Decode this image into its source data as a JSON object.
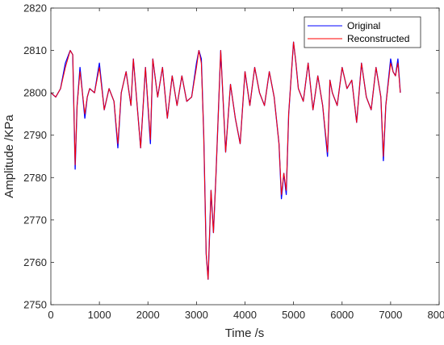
{
  "chart_data": {
    "type": "line",
    "xlabel": "Time /s",
    "ylabel": "Amplitude /KPa",
    "xlim": [
      0,
      8000
    ],
    "ylim": [
      2750,
      2820
    ],
    "xticks": [
      "0",
      "1000",
      "2000",
      "3000",
      "4000",
      "5000",
      "6000",
      "7000",
      "8000"
    ],
    "yticks": [
      "2750",
      "2760",
      "2770",
      "2780",
      "2790",
      "2800",
      "2810",
      "2820"
    ],
    "grid": false,
    "legend_position": "top-right",
    "colors": {
      "Original": "#0000ff",
      "Reconstructed": "#ff0000"
    },
    "series": [
      {
        "name": "Original",
        "x": [
          0,
          100,
          200,
          300,
          400,
          450,
          500,
          540,
          600,
          700,
          750,
          800,
          900,
          1000,
          1100,
          1200,
          1300,
          1380,
          1450,
          1550,
          1650,
          1700,
          1750,
          1850,
          1950,
          2050,
          2100,
          2200,
          2300,
          2400,
          2500,
          2600,
          2700,
          2800,
          2900,
          3000,
          3050,
          3100,
          3150,
          3200,
          3240,
          3300,
          3350,
          3400,
          3500,
          3600,
          3700,
          3800,
          3900,
          4000,
          4100,
          4200,
          4300,
          4400,
          4500,
          4600,
          4700,
          4750,
          4800,
          4850,
          4900,
          5000,
          5050,
          5100,
          5200,
          5300,
          5400,
          5500,
          5600,
          5700,
          5750,
          5800,
          5900,
          6000,
          6100,
          6200,
          6300,
          6400,
          6500,
          6600,
          6700,
          6800,
          6850,
          6900,
          7000,
          7050,
          7100,
          7150,
          7200
        ],
        "values": [
          2800,
          2799,
          2801,
          2807,
          2810,
          2809,
          2782,
          2797,
          2806,
          2794,
          2799,
          2801,
          2800,
          2807,
          2796,
          2801,
          2798,
          2787,
          2800,
          2805,
          2797,
          2808,
          2801,
          2787,
          2806,
          2788,
          2808,
          2799,
          2806,
          2794,
          2804,
          2797,
          2804,
          2798,
          2799,
          2807,
          2810,
          2808,
          2790,
          2762,
          2756,
          2777,
          2767,
          2780,
          2810,
          2786,
          2802,
          2794,
          2788,
          2805,
          2797,
          2806,
          2800,
          2797,
          2805,
          2799,
          2788,
          2775,
          2781,
          2776,
          2795,
          2812,
          2807,
          2801,
          2798,
          2807,
          2796,
          2804,
          2797,
          2785,
          2803,
          2800,
          2797,
          2806,
          2801,
          2803,
          2793,
          2807,
          2799,
          2796,
          2806,
          2799,
          2784,
          2797,
          2808,
          2805,
          2804,
          2808,
          2800
        ]
      },
      {
        "name": "Reconstructed",
        "x": [
          0,
          100,
          200,
          300,
          400,
          450,
          500,
          540,
          600,
          700,
          750,
          800,
          900,
          1000,
          1100,
          1200,
          1300,
          1380,
          1450,
          1550,
          1650,
          1700,
          1750,
          1850,
          1950,
          2050,
          2100,
          2200,
          2300,
          2400,
          2500,
          2600,
          2700,
          2800,
          2900,
          3000,
          3050,
          3100,
          3150,
          3200,
          3240,
          3300,
          3350,
          3400,
          3500,
          3600,
          3700,
          3800,
          3900,
          4000,
          4100,
          4200,
          4300,
          4400,
          4500,
          4600,
          4700,
          4750,
          4800,
          4850,
          4900,
          5000,
          5050,
          5100,
          5200,
          5300,
          5400,
          5500,
          5600,
          5700,
          5750,
          5800,
          5900,
          6000,
          6100,
          6200,
          6300,
          6400,
          6500,
          6600,
          6700,
          6800,
          6850,
          6900,
          7000,
          7050,
          7100,
          7150,
          7200
        ],
        "values": [
          2800,
          2799,
          2801,
          2806,
          2810,
          2809,
          2783,
          2797,
          2805,
          2795,
          2799,
          2801,
          2800,
          2806,
          2796,
          2801,
          2798,
          2788,
          2800,
          2805,
          2797,
          2808,
          2801,
          2787,
          2806,
          2789,
          2808,
          2799,
          2806,
          2794,
          2804,
          2797,
          2804,
          2798,
          2799,
          2806,
          2810,
          2807,
          2790,
          2762,
          2756,
          2777,
          2767,
          2780,
          2810,
          2786,
          2802,
          2794,
          2788,
          2805,
          2797,
          2806,
          2800,
          2797,
          2805,
          2799,
          2788,
          2776,
          2781,
          2777,
          2795,
          2812,
          2807,
          2801,
          2798,
          2807,
          2796,
          2804,
          2797,
          2786,
          2803,
          2800,
          2797,
          2806,
          2801,
          2803,
          2793,
          2807,
          2799,
          2796,
          2806,
          2799,
          2785,
          2797,
          2807,
          2805,
          2804,
          2807,
          2800
        ]
      }
    ]
  }
}
